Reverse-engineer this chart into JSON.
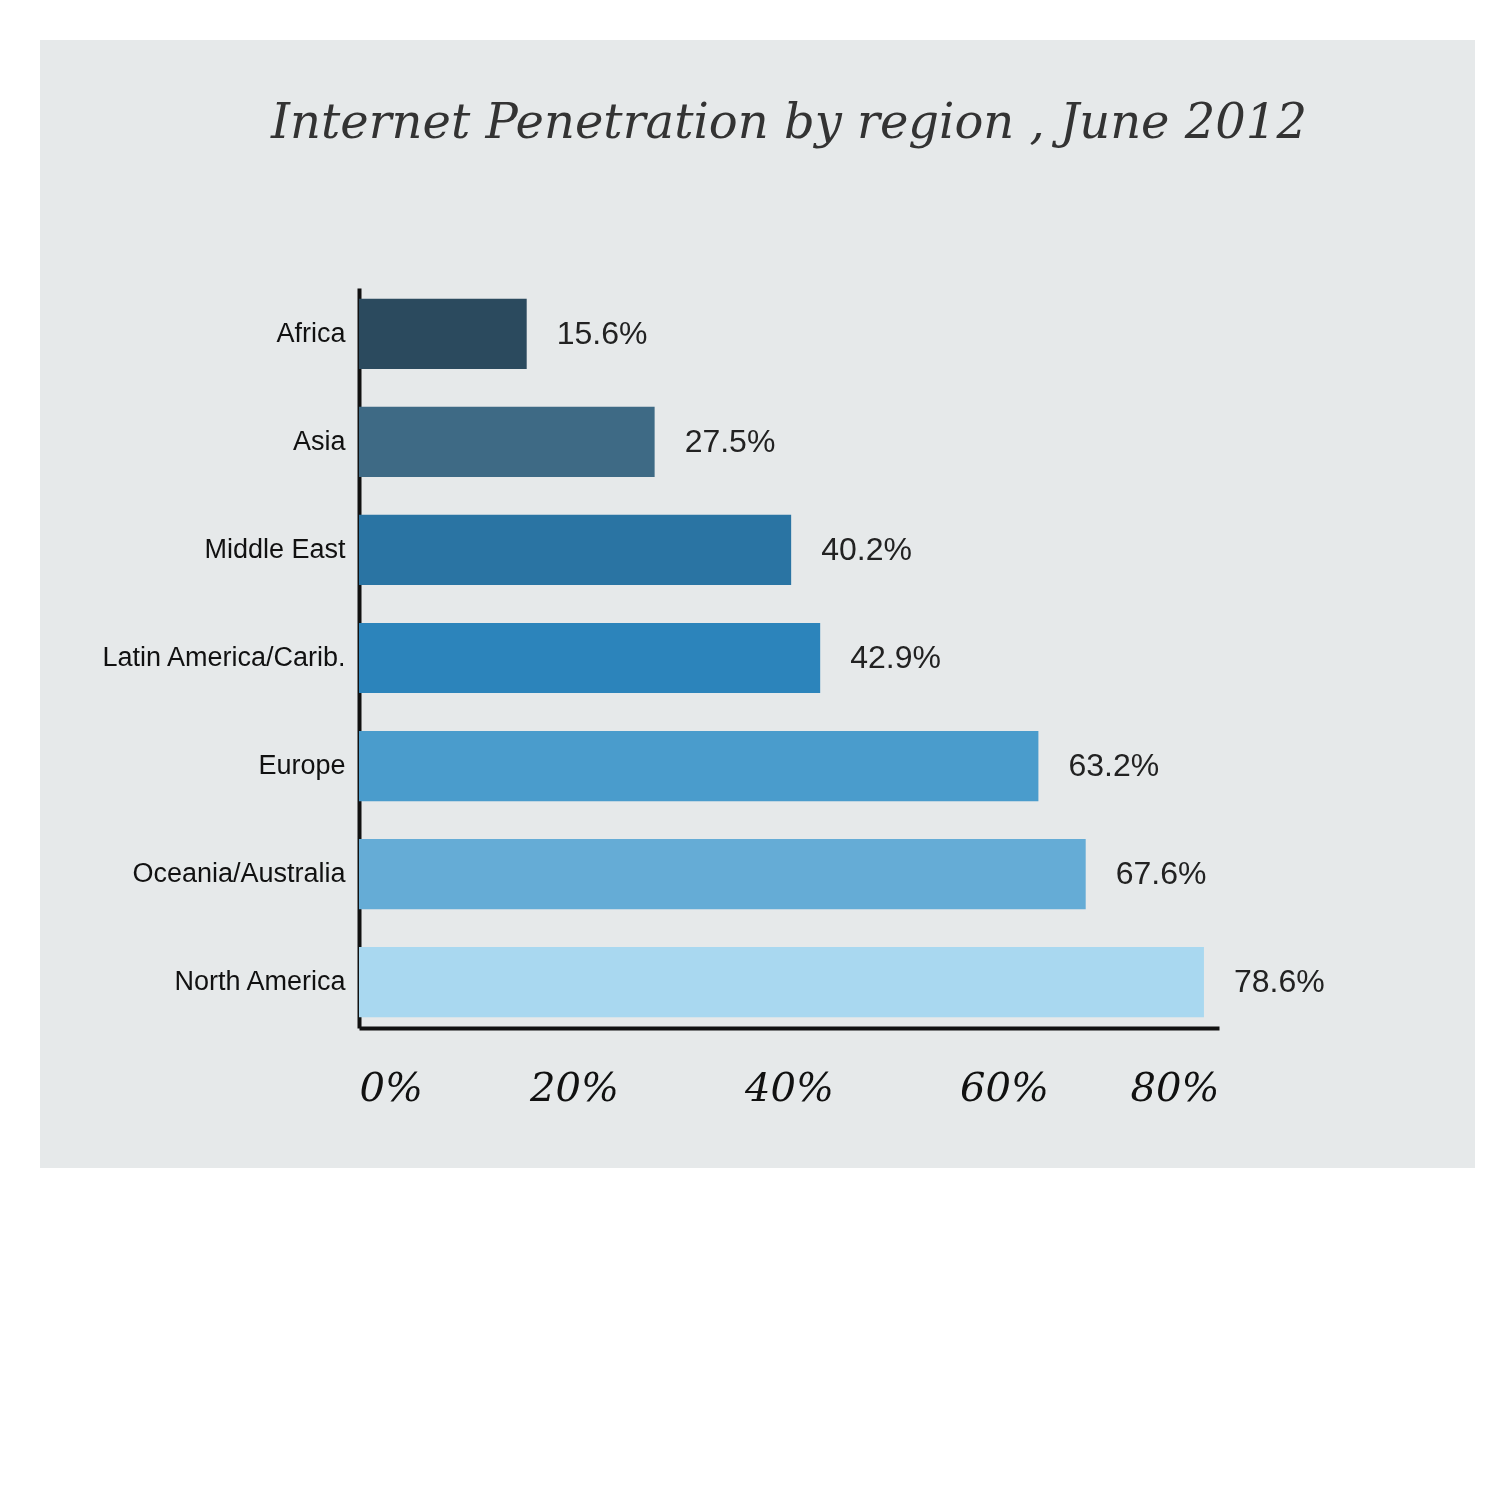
{
  "chart_data": {
    "type": "bar",
    "title": "Internet Penetration by region , June 2012",
    "orientation": "horizontal",
    "categories": [
      "Africa",
      "Asia",
      "Middle East",
      "Latin America/Carib.",
      "Europe",
      "Oceania/Australia",
      "North America"
    ],
    "values": [
      15.6,
      27.5,
      40.2,
      42.9,
      63.2,
      67.6,
      78.6
    ],
    "colors": [
      "#2b4a5e",
      "#3e6a85",
      "#2a74a3",
      "#2c84bb",
      "#4a9ccc",
      "#65acd6",
      "#a9d8f0"
    ],
    "value_labels": [
      "15.6%",
      "27.5%",
      "40.2%",
      "42.9%",
      "63.2%",
      "67.6%",
      "78.6%"
    ],
    "xlim": [
      0,
      80
    ],
    "xticks": [
      {
        "value": 0,
        "label": "0%"
      },
      {
        "value": 20,
        "label": "20%"
      },
      {
        "value": 40,
        "label": "40%"
      },
      {
        "value": 60,
        "label": "60%"
      },
      {
        "value": 80,
        "label": "80%"
      }
    ],
    "grid": false
  }
}
